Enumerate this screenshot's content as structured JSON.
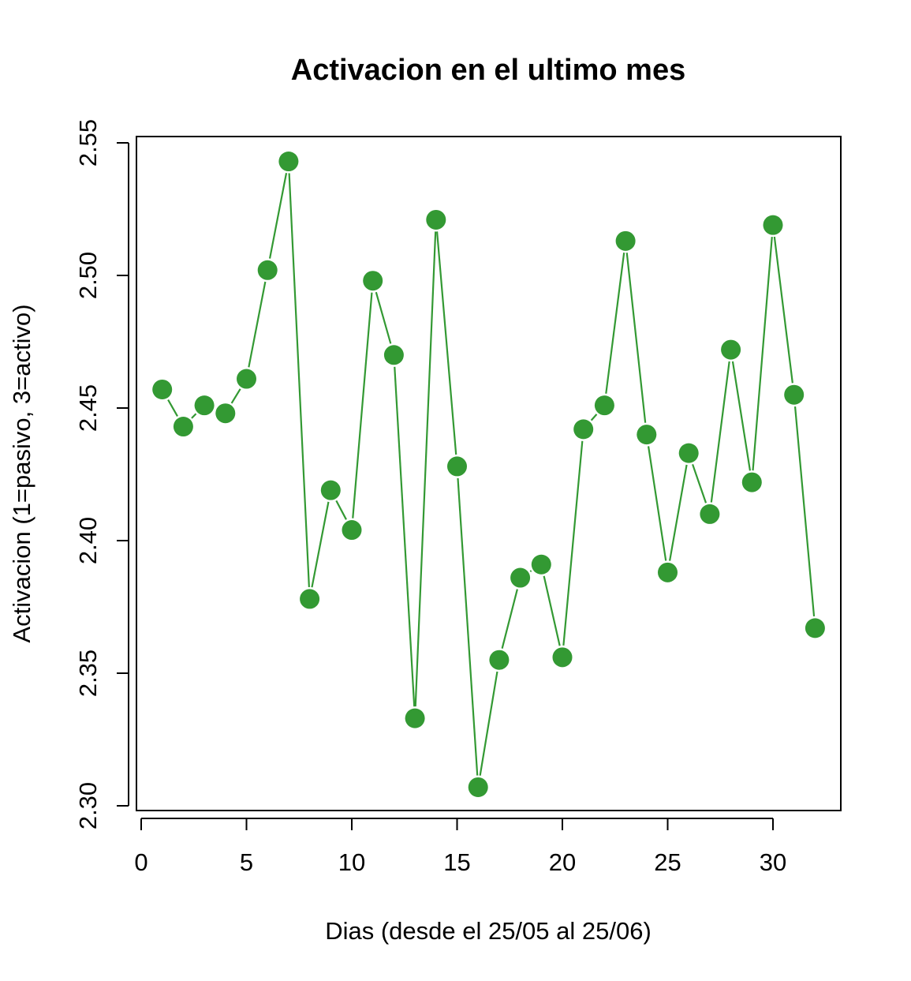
{
  "chart_data": {
    "type": "line",
    "title": "Activacion en el ultimo mes",
    "xlabel": "Dias (desde el 25/05 al 25/06)",
    "ylabel": "Activacion (1=pasivo, 3=activo)",
    "xlim": [
      0,
      33
    ],
    "ylim": [
      2.3,
      2.55
    ],
    "xticks": [
      0,
      5,
      10,
      15,
      20,
      25,
      30
    ],
    "xtick_labels": [
      "0",
      "5",
      "10",
      "15",
      "20",
      "25",
      "30"
    ],
    "yticks": [
      2.3,
      2.35,
      2.4,
      2.45,
      2.5,
      2.55
    ],
    "ytick_labels": [
      "2.30",
      "2.35",
      "2.40",
      "2.45",
      "2.50",
      "2.55"
    ],
    "grid": false,
    "series": [
      {
        "color": "#339933",
        "x": [
          1,
          2,
          3,
          4,
          5,
          6,
          7,
          8,
          9,
          10,
          11,
          12,
          13,
          14,
          15,
          16,
          17,
          18,
          19,
          20,
          21,
          22,
          23,
          24,
          25,
          26,
          27,
          28,
          29,
          30,
          31,
          32
        ],
        "values": [
          2.457,
          2.443,
          2.451,
          2.448,
          2.461,
          2.502,
          2.543,
          2.378,
          2.419,
          2.404,
          2.498,
          2.47,
          2.333,
          2.521,
          2.428,
          2.307,
          2.355,
          2.386,
          2.391,
          2.356,
          2.442,
          2.451,
          2.513,
          2.44,
          2.388,
          2.433,
          2.41,
          2.472,
          2.422,
          2.519,
          2.455,
          2.367
        ]
      }
    ]
  }
}
